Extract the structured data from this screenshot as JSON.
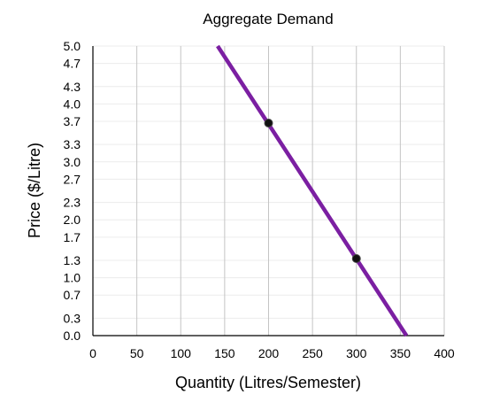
{
  "chart_data": {
    "type": "line",
    "title": "Aggregate Demand",
    "xlabel": "Quantity (Litres/Semester)",
    "ylabel": "Price ($/Litre)",
    "xlim": [
      0,
      400
    ],
    "ylim": [
      0,
      5
    ],
    "x_ticks": [
      "0",
      "50",
      "100",
      "150",
      "200",
      "250",
      "300",
      "350",
      "400"
    ],
    "y_ticks": [
      "0.0",
      "0.3",
      "0.7",
      "1.0",
      "1.3",
      "1.7",
      "2.0",
      "2.3",
      "2.7",
      "3.0",
      "3.3",
      "3.7",
      "4.0",
      "4.3",
      "4.7",
      "5.0"
    ],
    "grid": {
      "vertical": true,
      "horizontal_light": true
    },
    "series": [
      {
        "color": "#7b1fa2",
        "x": [
          142,
          357
        ],
        "y": [
          5.0,
          0.0
        ]
      }
    ],
    "points": [
      {
        "x": 200,
        "y": 3.67
      },
      {
        "x": 300,
        "y": 1.33
      }
    ]
  }
}
